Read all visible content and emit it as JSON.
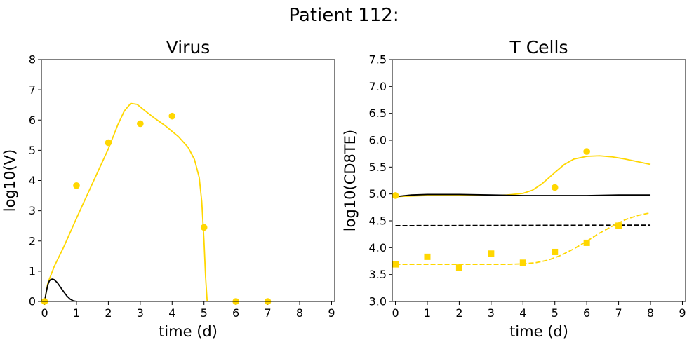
{
  "figure": {
    "title": "Patient 112:"
  },
  "colors": {
    "gold": "#FFD700",
    "black": "#000000"
  },
  "chart_data": [
    {
      "type": "line",
      "title": "Virus",
      "xlabel": "time (d)",
      "ylabel": "log10(V)",
      "xlim": [
        -0.1,
        9.1
      ],
      "ylim": [
        0,
        8
      ],
      "xticks": [
        "0",
        "1",
        "2",
        "3",
        "4",
        "5",
        "6",
        "7",
        "8",
        "9"
      ],
      "yticks": [
        "0",
        "1",
        "2",
        "3",
        "4",
        "5",
        "6",
        "7",
        "8"
      ],
      "grid": false,
      "legend": "none",
      "series": [
        {
          "style": "line",
          "color": "#FFD700",
          "x": [
            0,
            0.1,
            0.3,
            0.6,
            1.0,
            1.5,
            2.0,
            2.3,
            2.5,
            2.7,
            2.9,
            3.1,
            3.4,
            3.8,
            4.2,
            4.5,
            4.7,
            4.85,
            4.93,
            5.0,
            5.05,
            5.1
          ],
          "y": [
            0,
            0.6,
            1.15,
            1.8,
            2.75,
            3.9,
            5.05,
            5.85,
            6.3,
            6.55,
            6.52,
            6.35,
            6.1,
            5.8,
            5.45,
            5.1,
            4.7,
            4.1,
            3.3,
            2.0,
            0.8,
            0
          ]
        },
        {
          "style": "line",
          "color": "#000000",
          "x": [
            0,
            0.05,
            0.1,
            0.15,
            0.2,
            0.25,
            0.3,
            0.4,
            0.5,
            0.6,
            0.7,
            0.8,
            0.9,
            1.0,
            1.5,
            2,
            3,
            4,
            5,
            6,
            7,
            8
          ],
          "y": [
            0,
            0.3,
            0.55,
            0.68,
            0.73,
            0.74,
            0.72,
            0.62,
            0.47,
            0.32,
            0.18,
            0.08,
            0.02,
            0.0,
            0,
            0,
            0,
            0,
            0,
            0,
            0,
            0
          ]
        },
        {
          "style": "markers",
          "marker": "circle",
          "color": "#FFD700",
          "x": [
            0,
            1,
            2,
            3,
            4,
            5,
            6,
            7
          ],
          "y": [
            0,
            3.83,
            5.25,
            5.88,
            6.13,
            2.45,
            0,
            0
          ]
        }
      ]
    },
    {
      "type": "line",
      "title": "T Cells",
      "xlabel": "time (d)",
      "ylabel": "log10(CD8TE)",
      "xlim": [
        -0.1,
        9.1
      ],
      "ylim": [
        3.0,
        7.5
      ],
      "xticks": [
        "0",
        "1",
        "2",
        "3",
        "4",
        "5",
        "6",
        "7",
        "8",
        "9"
      ],
      "yticks": [
        "3.0",
        "3.5",
        "4.0",
        "4.5",
        "5.0",
        "5.5",
        "6.0",
        "6.5",
        "7.0",
        "7.5"
      ],
      "grid": false,
      "legend": "none",
      "series": [
        {
          "style": "line",
          "color": "#FFD700",
          "x": [
            0,
            1,
            2,
            3,
            3.5,
            4,
            4.3,
            4.6,
            5,
            5.3,
            5.6,
            6,
            6.4,
            6.8,
            7.2,
            7.6,
            8
          ],
          "y": [
            4.95,
            4.97,
            4.97,
            4.97,
            4.98,
            5.01,
            5.07,
            5.19,
            5.4,
            5.55,
            5.65,
            5.7,
            5.71,
            5.69,
            5.65,
            5.6,
            5.55
          ]
        },
        {
          "style": "line",
          "color": "#000000",
          "x": [
            0,
            0.5,
            1,
            2,
            3,
            4,
            5,
            6,
            7,
            8
          ],
          "y": [
            4.95,
            4.98,
            4.99,
            4.99,
            4.98,
            4.97,
            4.97,
            4.97,
            4.98,
            4.98
          ]
        },
        {
          "style": "dashed",
          "color": "#000000",
          "x": [
            0,
            8
          ],
          "y": [
            4.41,
            4.42
          ]
        },
        {
          "style": "dashed",
          "color": "#FFD700",
          "x": [
            0,
            1,
            2,
            3,
            3.5,
            4,
            4.4,
            4.8,
            5.2,
            5.6,
            6,
            6.4,
            6.8,
            7.2,
            7.6,
            8
          ],
          "y": [
            3.69,
            3.69,
            3.69,
            3.69,
            3.69,
            3.7,
            3.72,
            3.77,
            3.86,
            3.98,
            4.12,
            4.27,
            4.4,
            4.52,
            4.6,
            4.65
          ]
        },
        {
          "style": "markers",
          "marker": "circle",
          "color": "#FFD700",
          "x": [
            0,
            5,
            6
          ],
          "y": [
            4.97,
            5.12,
            5.79
          ]
        },
        {
          "style": "markers",
          "marker": "square",
          "color": "#FFD700",
          "x": [
            0,
            1,
            2,
            3,
            4,
            5,
            6,
            7
          ],
          "y": [
            3.69,
            3.83,
            3.63,
            3.89,
            3.72,
            3.92,
            4.09,
            4.41
          ]
        }
      ]
    }
  ]
}
